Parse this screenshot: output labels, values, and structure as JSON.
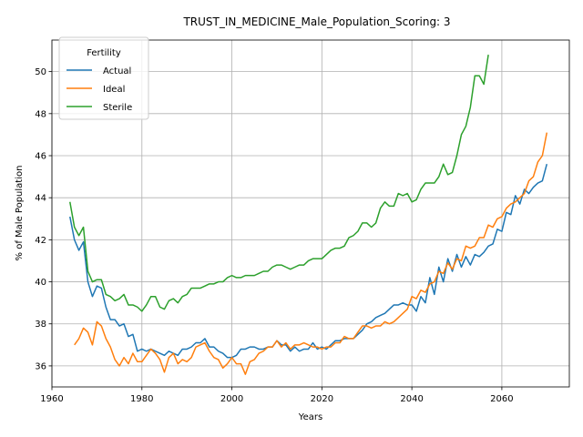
{
  "chart_data": {
    "type": "line",
    "title": "TRUST_IN_MEDICINE_Male_Population_Scoring: 3",
    "xlabel": "Years",
    "ylabel": "% of Male Population",
    "xlim": [
      1960,
      2075
    ],
    "ylim": [
      35,
      51.5
    ],
    "x_ticks": [
      1960,
      1980,
      2000,
      2020,
      2040,
      2060
    ],
    "y_ticks": [
      36,
      38,
      40,
      42,
      44,
      46,
      48,
      50
    ],
    "grid": true,
    "legend": {
      "title": "Fertility",
      "placement": "top-left"
    },
    "series": [
      {
        "name": "Actual",
        "color": "#1f77b4",
        "x": [
          1964,
          1965,
          1966,
          1967,
          1968,
          1969,
          1970,
          1971,
          1972,
          1973,
          1974,
          1975,
          1976,
          1977,
          1978,
          1979,
          1980,
          1981,
          1982,
          1983,
          1984,
          1985,
          1986,
          1987,
          1988,
          1989,
          1990,
          1991,
          1992,
          1993,
          1994,
          1995,
          1996,
          1997,
          1998,
          1999,
          2000,
          2001,
          2002,
          2003,
          2004,
          2005,
          2006,
          2007,
          2008,
          2009,
          2010,
          2011,
          2012,
          2013,
          2014,
          2015,
          2016,
          2017,
          2018,
          2019,
          2020,
          2021,
          2022,
          2023,
          2024,
          2025,
          2026,
          2027,
          2028,
          2029,
          2030,
          2031,
          2032,
          2033,
          2034,
          2035,
          2036,
          2037,
          2038,
          2039,
          2040,
          2041,
          2042,
          2043,
          2044,
          2045,
          2046,
          2047,
          2048,
          2049,
          2050,
          2051,
          2052,
          2053,
          2054,
          2055,
          2056,
          2057,
          2058,
          2059,
          2060,
          2061,
          2062,
          2063,
          2064,
          2065,
          2066,
          2067,
          2068,
          2069,
          2070
        ],
        "values": [
          43.1,
          42.0,
          41.5,
          41.9,
          40.0,
          39.3,
          39.8,
          39.7,
          38.8,
          38.2,
          38.2,
          37.9,
          38.0,
          37.4,
          37.5,
          36.7,
          36.8,
          36.7,
          36.8,
          36.7,
          36.6,
          36.5,
          36.7,
          36.6,
          36.5,
          36.8,
          36.8,
          36.9,
          37.1,
          37.1,
          37.3,
          36.9,
          36.9,
          36.7,
          36.6,
          36.4,
          36.4,
          36.5,
          36.8,
          36.8,
          36.9,
          36.9,
          36.8,
          36.8,
          36.9,
          36.9,
          37.2,
          37.0,
          37.0,
          36.7,
          36.9,
          36.7,
          36.8,
          36.8,
          37.1,
          36.8,
          36.9,
          36.8,
          37.0,
          37.2,
          37.2,
          37.3,
          37.3,
          37.3,
          37.5,
          37.7,
          38.0,
          38.1,
          38.3,
          38.4,
          38.5,
          38.7,
          38.9,
          38.9,
          39.0,
          38.9,
          38.9,
          38.6,
          39.3,
          39.0,
          40.2,
          39.4,
          40.7,
          40.0,
          41.1,
          40.5,
          41.3,
          40.7,
          41.2,
          40.8,
          41.3,
          41.2,
          41.4,
          41.7,
          41.8,
          42.5,
          42.4,
          43.3,
          43.2,
          44.1,
          43.7,
          44.4,
          44.2,
          44.5,
          44.7,
          44.8,
          45.6
        ]
      },
      {
        "name": "Ideal",
        "color": "#ff7f0e",
        "x": [
          1965,
          1966,
          1967,
          1968,
          1969,
          1970,
          1971,
          1972,
          1973,
          1974,
          1975,
          1976,
          1977,
          1978,
          1979,
          1980,
          1981,
          1982,
          1983,
          1984,
          1985,
          1986,
          1987,
          1988,
          1989,
          1990,
          1991,
          1992,
          1993,
          1994,
          1995,
          1996,
          1997,
          1998,
          1999,
          2000,
          2001,
          2002,
          2003,
          2004,
          2005,
          2006,
          2007,
          2008,
          2009,
          2010,
          2011,
          2012,
          2013,
          2014,
          2015,
          2016,
          2017,
          2018,
          2019,
          2020,
          2021,
          2022,
          2023,
          2024,
          2025,
          2026,
          2027,
          2028,
          2029,
          2030,
          2031,
          2032,
          2033,
          2034,
          2035,
          2036,
          2037,
          2038,
          2039,
          2040,
          2041,
          2042,
          2043,
          2044,
          2045,
          2046,
          2047,
          2048,
          2049,
          2050,
          2051,
          2052,
          2053,
          2054,
          2055,
          2056,
          2057,
          2058,
          2059,
          2060,
          2061,
          2062,
          2063,
          2064,
          2065,
          2066,
          2067,
          2068,
          2069,
          2070
        ],
        "values": [
          37.0,
          37.3,
          37.8,
          37.6,
          37.0,
          38.1,
          37.9,
          37.3,
          36.9,
          36.3,
          36.0,
          36.4,
          36.1,
          36.6,
          36.2,
          36.2,
          36.5,
          36.8,
          36.6,
          36.3,
          35.7,
          36.4,
          36.6,
          36.1,
          36.3,
          36.2,
          36.4,
          36.9,
          37.0,
          37.1,
          36.7,
          36.4,
          36.3,
          35.9,
          36.1,
          36.4,
          36.1,
          36.1,
          35.6,
          36.2,
          36.3,
          36.6,
          36.7,
          36.9,
          36.9,
          37.2,
          36.9,
          37.1,
          36.8,
          37.0,
          37.0,
          37.1,
          37.0,
          36.9,
          36.9,
          36.8,
          36.9,
          36.9,
          37.1,
          37.1,
          37.4,
          37.3,
          37.3,
          37.6,
          37.9,
          37.9,
          37.8,
          37.9,
          37.9,
          38.1,
          38.0,
          38.1,
          38.3,
          38.5,
          38.7,
          39.3,
          39.2,
          39.6,
          39.5,
          39.9,
          40.0,
          40.5,
          40.4,
          40.9,
          40.6,
          41.1,
          41.0,
          41.7,
          41.6,
          41.7,
          42.1,
          42.1,
          42.7,
          42.6,
          43.0,
          43.1,
          43.5,
          43.7,
          43.8,
          44.0,
          44.2,
          44.8,
          45.0,
          45.7,
          46.0,
          47.1
        ]
      },
      {
        "name": "Sterile",
        "color": "#2ca02c",
        "x": [
          1964,
          1965,
          1966,
          1967,
          1968,
          1969,
          1970,
          1971,
          1972,
          1973,
          1974,
          1975,
          1976,
          1977,
          1978,
          1979,
          1980,
          1981,
          1982,
          1983,
          1984,
          1985,
          1986,
          1987,
          1988,
          1989,
          1990,
          1991,
          1992,
          1993,
          1994,
          1995,
          1996,
          1997,
          1998,
          1999,
          2000,
          2001,
          2002,
          2003,
          2004,
          2005,
          2006,
          2007,
          2008,
          2009,
          2010,
          2011,
          2012,
          2013,
          2014,
          2015,
          2016,
          2017,
          2018,
          2019,
          2020,
          2021,
          2022,
          2023,
          2024,
          2025,
          2026,
          2027,
          2028,
          2029,
          2030,
          2031,
          2032,
          2033,
          2034,
          2035,
          2036,
          2037,
          2038,
          2039,
          2040,
          2041,
          2042,
          2043,
          2044,
          2045,
          2046,
          2047,
          2048,
          2049,
          2050,
          2051,
          2052,
          2053,
          2054,
          2055,
          2056,
          2057
        ],
        "values": [
          43.8,
          42.6,
          42.2,
          42.6,
          40.5,
          40.0,
          40.1,
          40.1,
          39.4,
          39.3,
          39.1,
          39.2,
          39.4,
          38.9,
          38.9,
          38.8,
          38.6,
          38.9,
          39.3,
          39.3,
          38.8,
          38.7,
          39.1,
          39.2,
          39.0,
          39.3,
          39.4,
          39.7,
          39.7,
          39.7,
          39.8,
          39.9,
          39.9,
          40.0,
          40.0,
          40.2,
          40.3,
          40.2,
          40.2,
          40.3,
          40.3,
          40.3,
          40.4,
          40.5,
          40.5,
          40.7,
          40.8,
          40.8,
          40.7,
          40.6,
          40.7,
          40.8,
          40.8,
          41.0,
          41.1,
          41.1,
          41.1,
          41.3,
          41.5,
          41.6,
          41.6,
          41.7,
          42.1,
          42.2,
          42.4,
          42.8,
          42.8,
          42.6,
          42.8,
          43.5,
          43.8,
          43.6,
          43.6,
          44.2,
          44.1,
          44.2,
          43.8,
          43.9,
          44.4,
          44.7,
          44.7,
          44.7,
          45.0,
          45.6,
          45.1,
          45.2,
          46.0,
          47.0,
          47.4,
          48.3,
          49.8,
          49.8,
          49.4,
          50.8
        ]
      }
    ]
  }
}
